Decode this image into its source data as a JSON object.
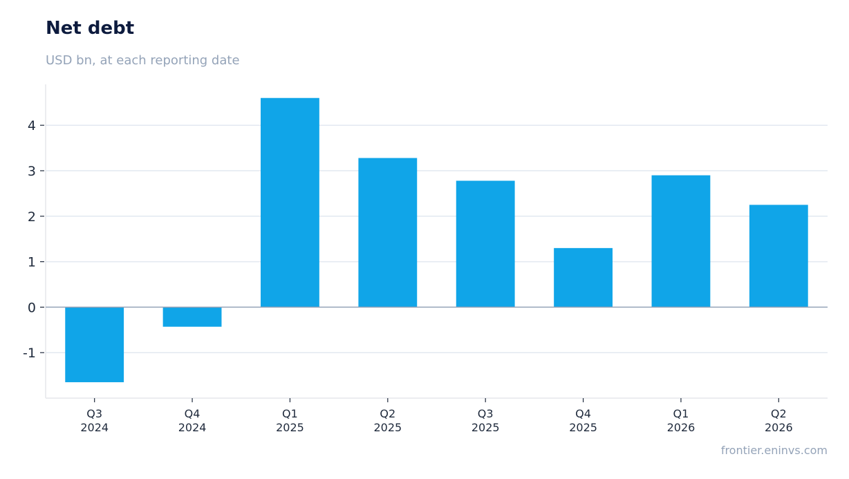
{
  "header": {
    "title": "Net debt",
    "subtitle": "USD bn, at each reporting date"
  },
  "footer": {
    "source": "frontier.eninvs.com"
  },
  "colors": {
    "bar": "#10a5e8",
    "grid": "#e2e8f0",
    "zero_line": "#94a3b8",
    "axis": "#e5e7eb"
  },
  "chart_data": {
    "type": "bar",
    "title": "Net debt",
    "subtitle": "USD bn, at each reporting date",
    "xlabel": "",
    "ylabel": "",
    "categories": [
      [
        "Q3",
        "2024"
      ],
      [
        "Q4",
        "2024"
      ],
      [
        "Q1",
        "2025"
      ],
      [
        "Q2",
        "2025"
      ],
      [
        "Q3",
        "2025"
      ],
      [
        "Q4",
        "2025"
      ],
      [
        "Q1",
        "2026"
      ],
      [
        "Q2",
        "2026"
      ]
    ],
    "values": [
      -1.65,
      -0.43,
      4.6,
      3.28,
      2.78,
      1.3,
      2.9,
      2.25
    ],
    "ylim": [
      -2.0,
      4.9
    ],
    "yticks": [
      -1,
      0,
      1,
      2,
      3,
      4
    ],
    "grid": true,
    "legend": "none"
  }
}
